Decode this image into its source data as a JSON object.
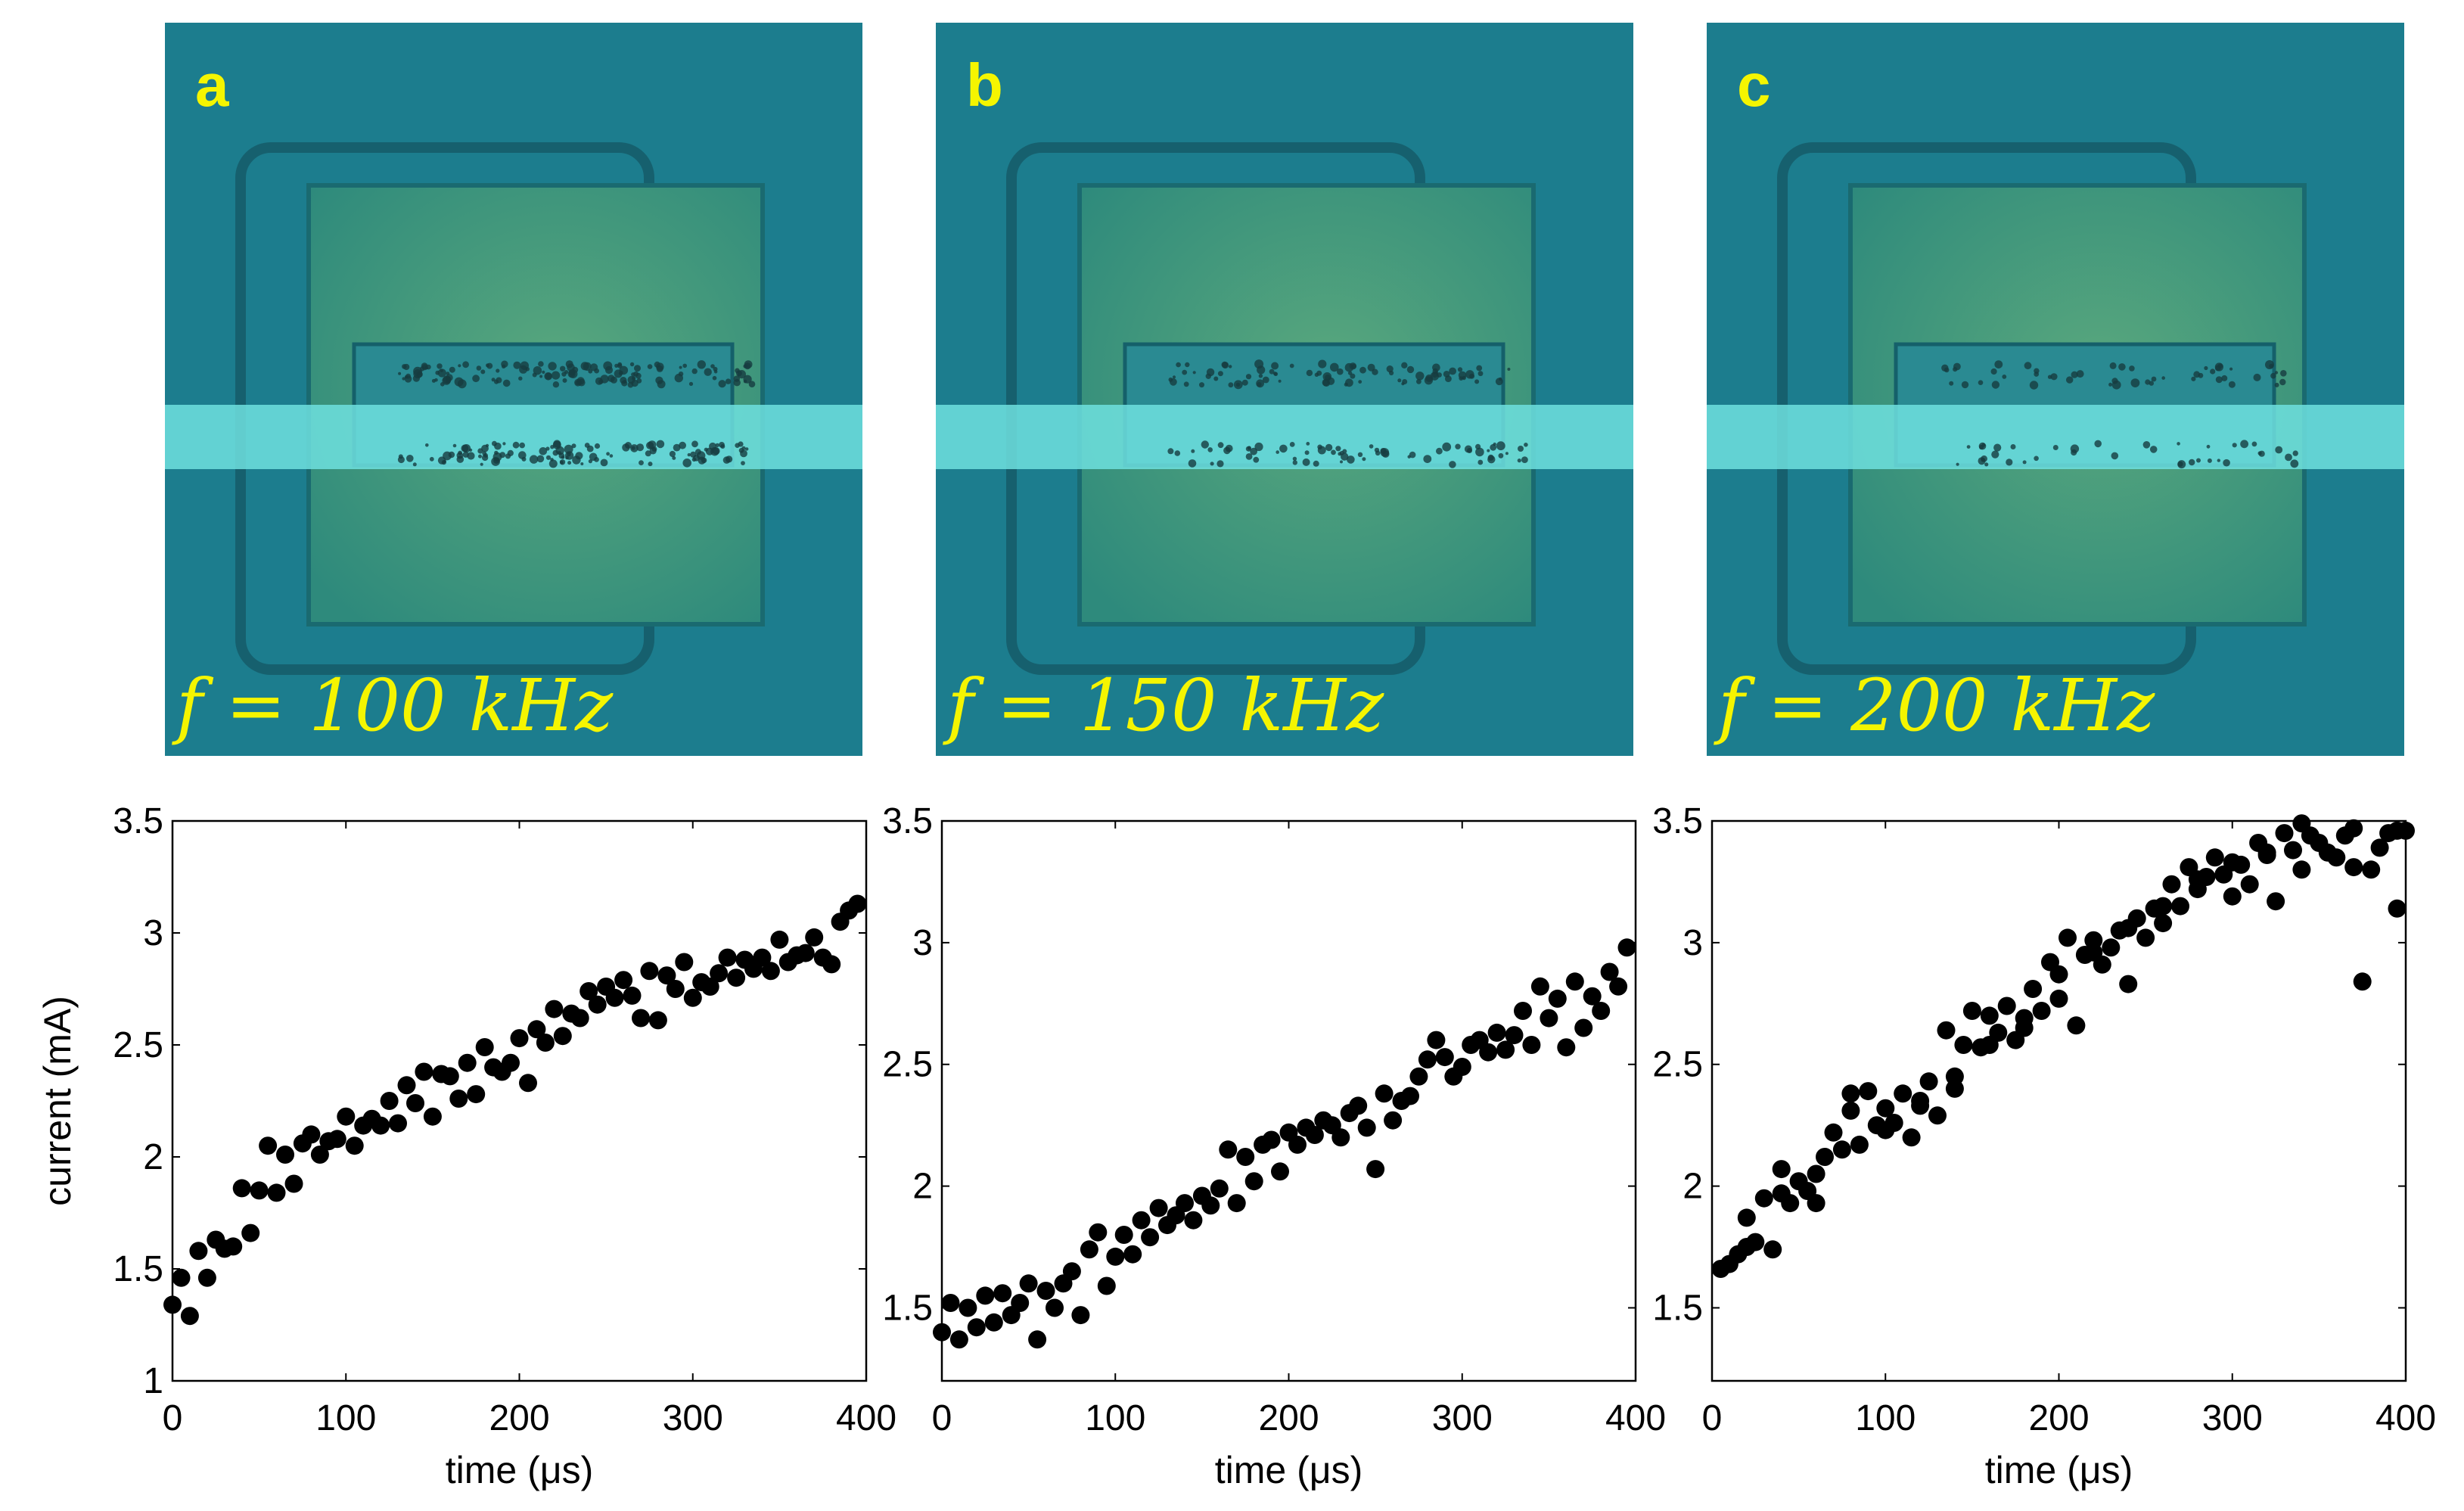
{
  "figure": {
    "label_color": "#f5f500",
    "marker_color": "#000000",
    "image_bg": "#1c7d8e",
    "channel_color": "#6fe0df",
    "pad_color": "#3f9c82"
  },
  "images": [
    {
      "letter": "a",
      "formula": "f = 100 kHz"
    },
    {
      "letter": "b",
      "formula": "f = 150 kHz"
    },
    {
      "letter": "c",
      "formula": "f = 200 kHz"
    }
  ],
  "chart_data": [
    {
      "type": "scatter",
      "title": "",
      "xlabel": "time (μs)",
      "ylabel": "current (mA)",
      "xlim": [
        0,
        400
      ],
      "ylim": [
        1,
        3.5
      ],
      "xticks": [
        "0",
        "100",
        "200",
        "300",
        "400"
      ],
      "yticks": [
        "1",
        "1.5",
        "2",
        "2.5",
        "3",
        "3.5"
      ],
      "x": [
        0,
        5,
        10,
        15,
        20,
        25,
        30,
        35,
        40,
        45,
        50,
        55,
        60,
        65,
        70,
        75,
        80,
        85,
        90,
        95,
        100,
        105,
        110,
        115,
        120,
        125,
        130,
        135,
        140,
        145,
        150,
        155,
        160,
        165,
        170,
        175,
        180,
        185,
        190,
        195,
        200,
        205,
        210,
        215,
        220,
        225,
        230,
        235,
        240,
        245,
        250,
        255,
        260,
        265,
        270,
        275,
        280,
        285,
        290,
        295,
        300,
        305,
        310,
        315,
        320,
        325,
        330,
        335,
        340,
        345,
        350,
        355,
        360,
        365,
        370,
        375,
        380,
        385,
        390,
        395
      ],
      "y": [
        1.34,
        1.46,
        1.29,
        1.58,
        1.46,
        1.63,
        1.59,
        1.6,
        1.86,
        1.66,
        1.85,
        2.05,
        1.84,
        2.01,
        1.88,
        2.06,
        2.1,
        2.01,
        2.07,
        2.08,
        2.18,
        2.05,
        2.14,
        2.17,
        2.14,
        2.25,
        2.15,
        2.32,
        2.24,
        2.38,
        2.18,
        2.37,
        2.36,
        2.26,
        2.42,
        2.28,
        2.49,
        2.4,
        2.38,
        2.42,
        2.53,
        2.33,
        2.57,
        2.51,
        2.66,
        2.54,
        2.64,
        2.62,
        2.74,
        2.68,
        2.76,
        2.71,
        2.79,
        2.72,
        2.62,
        2.83,
        2.61,
        2.81,
        2.75,
        2.87,
        2.71,
        2.78,
        2.76,
        2.82,
        2.89,
        2.8,
        2.88,
        2.84,
        2.89,
        2.83,
        2.97,
        2.87,
        2.9,
        2.91,
        2.98,
        2.89,
        2.86,
        3.05,
        3.1,
        3.13
      ]
    },
    {
      "type": "scatter",
      "title": "",
      "xlabel": "time (μs)",
      "ylabel": "",
      "xlim": [
        0,
        400
      ],
      "ylim": [
        1.2,
        3.5
      ],
      "xticks": [
        "0",
        "100",
        "200",
        "300",
        "400"
      ],
      "yticks": [
        "1.5",
        "2",
        "2.5",
        "3",
        "3.5"
      ],
      "x": [
        0,
        5,
        10,
        15,
        20,
        25,
        30,
        35,
        40,
        45,
        50,
        55,
        60,
        65,
        70,
        75,
        80,
        85,
        90,
        95,
        100,
        105,
        110,
        115,
        120,
        125,
        130,
        135,
        140,
        145,
        150,
        155,
        160,
        165,
        170,
        175,
        180,
        185,
        190,
        195,
        200,
        205,
        210,
        215,
        220,
        225,
        230,
        235,
        240,
        245,
        250,
        255,
        260,
        265,
        270,
        275,
        280,
        285,
        290,
        295,
        300,
        305,
        310,
        315,
        320,
        325,
        330,
        335,
        340,
        345,
        350,
        355,
        360,
        365,
        370,
        375,
        380,
        385,
        390,
        395
      ],
      "y": [
        1.4,
        1.52,
        1.37,
        1.5,
        1.42,
        1.55,
        1.44,
        1.56,
        1.47,
        1.52,
        1.6,
        1.37,
        1.57,
        1.5,
        1.6,
        1.65,
        1.47,
        1.74,
        1.81,
        1.59,
        1.71,
        1.8,
        1.72,
        1.86,
        1.79,
        1.91,
        1.84,
        1.88,
        1.93,
        1.86,
        1.96,
        1.92,
        1.99,
        2.15,
        1.93,
        2.12,
        2.02,
        2.17,
        2.19,
        2.06,
        2.22,
        2.17,
        2.24,
        2.21,
        2.27,
        2.25,
        2.2,
        2.3,
        2.33,
        2.24,
        2.07,
        2.38,
        2.27,
        2.35,
        2.37,
        2.45,
        2.52,
        2.6,
        2.53,
        2.45,
        2.49,
        2.58,
        2.6,
        2.55,
        2.63,
        2.56,
        2.62,
        2.72,
        2.58,
        2.82,
        2.69,
        2.77,
        2.57,
        2.84,
        2.65,
        2.78,
        2.72,
        2.88,
        2.82,
        2.98
      ]
    },
    {
      "type": "scatter",
      "title": "",
      "xlabel": "time (μs)",
      "ylabel": "",
      "xlim": [
        0,
        400
      ],
      "ylim": [
        1.2,
        3.5
      ],
      "xticks": [
        "0",
        "100",
        "200",
        "300",
        "400"
      ],
      "yticks": [
        "1.5",
        "2",
        "2.5",
        "3",
        "3.5"
      ],
      "x": [
        5,
        10,
        15,
        20,
        25,
        30,
        35,
        40,
        45,
        50,
        55,
        60,
        65,
        70,
        75,
        80,
        85,
        90,
        95,
        100,
        105,
        110,
        115,
        120,
        125,
        130,
        135,
        140,
        145,
        150,
        155,
        160,
        165,
        170,
        175,
        180,
        185,
        190,
        195,
        200,
        205,
        210,
        215,
        220,
        225,
        230,
        235,
        240,
        245,
        250,
        255,
        260,
        265,
        270,
        275,
        280,
        285,
        290,
        295,
        300,
        305,
        310,
        315,
        320,
        325,
        330,
        335,
        340,
        345,
        350,
        355,
        360,
        365,
        370,
        375,
        380,
        385,
        390,
        395,
        400,
        20,
        40,
        60,
        80,
        100,
        120,
        140,
        160,
        180,
        200,
        220,
        240,
        260,
        280,
        300,
        320,
        340,
        370,
        395
      ],
      "y": [
        1.66,
        1.68,
        1.72,
        1.87,
        1.77,
        1.95,
        1.74,
        2.07,
        1.93,
        2.02,
        1.98,
        1.93,
        2.12,
        2.22,
        2.15,
        2.31,
        2.17,
        2.39,
        2.25,
        2.32,
        2.26,
        2.38,
        2.2,
        2.35,
        2.43,
        2.29,
        2.64,
        2.45,
        2.58,
        2.72,
        2.57,
        2.7,
        2.63,
        2.74,
        2.6,
        2.69,
        2.81,
        2.72,
        2.92,
        2.87,
        3.02,
        2.66,
        2.95,
        3.01,
        2.91,
        2.98,
        3.05,
        2.83,
        3.1,
        3.02,
        3.14,
        3.08,
        3.24,
        3.15,
        3.31,
        3.22,
        3.27,
        3.35,
        3.28,
        3.19,
        3.32,
        3.24,
        3.41,
        3.36,
        3.17,
        3.45,
        3.38,
        3.3,
        3.44,
        3.41,
        3.37,
        3.35,
        3.44,
        3.47,
        2.84,
        3.3,
        3.39,
        3.45,
        3.14,
        3.46,
        1.75,
        1.97,
        2.05,
        2.38,
        2.23,
        2.33,
        2.4,
        2.58,
        2.65,
        2.77,
        2.96,
        3.06,
        3.15,
        3.26,
        3.33,
        3.37,
        3.49,
        3.31,
        3.46
      ]
    }
  ]
}
